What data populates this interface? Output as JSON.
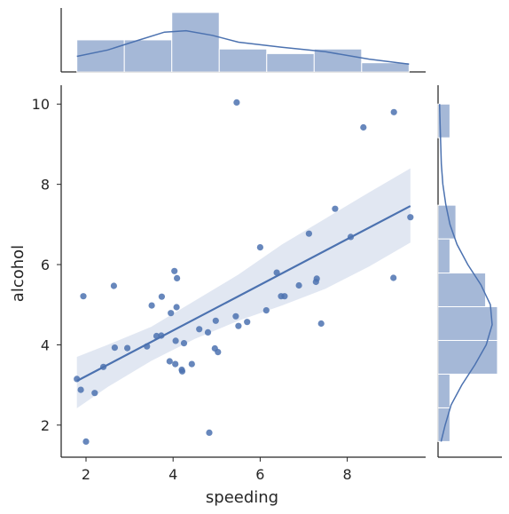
{
  "chart_data": {
    "type": "scatter",
    "variant": "jointplot-regression",
    "xlabel": "speeding",
    "ylabel": "alcohol",
    "xlim": [
      1.43,
      9.8
    ],
    "ylim": [
      1.2,
      10.47
    ],
    "x_ticks": [
      2,
      4,
      6,
      8
    ],
    "y_ticks": [
      2,
      4,
      6,
      8,
      10
    ],
    "color": "#4c72b0",
    "grid": false,
    "points": [
      {
        "x": 1.79,
        "y": 3.15
      },
      {
        "x": 1.88,
        "y": 2.88
      },
      {
        "x": 1.94,
        "y": 5.21
      },
      {
        "x": 2.0,
        "y": 1.59
      },
      {
        "x": 2.2,
        "y": 2.8
      },
      {
        "x": 2.4,
        "y": 3.45
      },
      {
        "x": 2.64,
        "y": 5.47
      },
      {
        "x": 2.66,
        "y": 3.93
      },
      {
        "x": 2.95,
        "y": 3.92
      },
      {
        "x": 3.4,
        "y": 3.96
      },
      {
        "x": 3.51,
        "y": 4.98
      },
      {
        "x": 3.62,
        "y": 4.22
      },
      {
        "x": 3.73,
        "y": 4.23
      },
      {
        "x": 3.74,
        "y": 5.2
      },
      {
        "x": 3.92,
        "y": 3.59
      },
      {
        "x": 3.95,
        "y": 4.79
      },
      {
        "x": 4.03,
        "y": 5.84
      },
      {
        "x": 4.05,
        "y": 3.52
      },
      {
        "x": 4.06,
        "y": 4.1
      },
      {
        "x": 4.08,
        "y": 4.94
      },
      {
        "x": 4.09,
        "y": 5.66
      },
      {
        "x": 4.2,
        "y": 3.38
      },
      {
        "x": 4.21,
        "y": 3.34
      },
      {
        "x": 4.25,
        "y": 4.04
      },
      {
        "x": 4.43,
        "y": 3.52
      },
      {
        "x": 4.6,
        "y": 4.39
      },
      {
        "x": 4.8,
        "y": 4.31
      },
      {
        "x": 4.83,
        "y": 1.81
      },
      {
        "x": 4.96,
        "y": 3.91
      },
      {
        "x": 4.98,
        "y": 4.6
      },
      {
        "x": 5.03,
        "y": 3.82
      },
      {
        "x": 5.44,
        "y": 4.71
      },
      {
        "x": 5.46,
        "y": 10.04
      },
      {
        "x": 5.5,
        "y": 4.47
      },
      {
        "x": 5.7,
        "y": 4.57
      },
      {
        "x": 6.0,
        "y": 6.43
      },
      {
        "x": 6.14,
        "y": 4.86
      },
      {
        "x": 6.38,
        "y": 5.8
      },
      {
        "x": 6.48,
        "y": 5.21
      },
      {
        "x": 6.56,
        "y": 5.21
      },
      {
        "x": 6.89,
        "y": 5.48
      },
      {
        "x": 7.12,
        "y": 6.77
      },
      {
        "x": 7.28,
        "y": 5.57
      },
      {
        "x": 7.3,
        "y": 5.65
      },
      {
        "x": 7.4,
        "y": 4.53
      },
      {
        "x": 7.72,
        "y": 7.39
      },
      {
        "x": 8.08,
        "y": 6.69
      },
      {
        "x": 8.37,
        "y": 9.42
      },
      {
        "x": 9.06,
        "y": 5.67
      },
      {
        "x": 9.07,
        "y": 9.8
      },
      {
        "x": 9.45,
        "y": 7.18
      }
    ],
    "regression": {
      "x": [
        1.79,
        9.45
      ],
      "y": [
        3.1,
        7.46
      ]
    },
    "confidence_band": {
      "x": [
        1.79,
        2.5,
        3.5,
        4.5,
        5.5,
        6.5,
        7.5,
        8.5,
        9.45
      ],
      "upper": [
        3.7,
        4.0,
        4.45,
        5.1,
        5.75,
        6.5,
        7.15,
        7.8,
        8.4
      ],
      "lower": [
        2.42,
        2.95,
        3.6,
        4.15,
        4.6,
        4.98,
        5.4,
        5.95,
        6.55
      ]
    },
    "marginal_x": {
      "bin_edges": [
        1.79,
        2.88,
        3.97,
        5.06,
        6.15,
        7.24,
        8.33,
        9.42
      ],
      "counts": [
        7,
        7,
        13,
        5,
        4,
        5,
        2
      ],
      "kde_x": [
        1.79,
        2.5,
        3.2,
        3.8,
        4.3,
        4.9,
        5.5,
        6.5,
        7.5,
        8.5,
        9.42
      ],
      "kde_y": [
        3.4,
        4.8,
        6.9,
        8.7,
        9.0,
        8.0,
        6.5,
        5.4,
        4.4,
        2.8,
        1.7
      ]
    },
    "marginal_y": {
      "bin_edges": [
        1.59,
        2.43,
        3.27,
        4.11,
        4.95,
        5.79,
        6.64,
        7.48,
        8.32,
        9.16,
        10.0
      ],
      "counts": [
        2,
        2,
        10,
        10,
        8,
        2,
        3,
        0,
        0,
        2
      ],
      "kde_y": [
        1.59,
        2.0,
        2.5,
        3.0,
        3.5,
        4.0,
        4.5,
        5.0,
        5.5,
        6.0,
        6.5,
        7.0,
        7.5,
        8.0,
        8.5,
        9.0,
        9.5,
        10.0
      ],
      "kde_x": [
        0.5,
        1.2,
        2.2,
        4.0,
        6.2,
        8.1,
        9.1,
        8.8,
        7.2,
        5.0,
        3.2,
        2.0,
        1.3,
        0.8,
        0.55,
        0.45,
        0.35,
        0.25
      ]
    }
  }
}
